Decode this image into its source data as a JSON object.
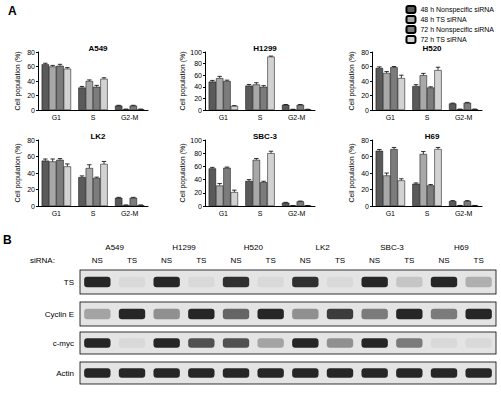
{
  "chart_data": [
    {
      "type": "bar",
      "title": "A549",
      "ylabel": "Cell population (%)",
      "categories": [
        "G1",
        "S",
        "G2-M"
      ],
      "series": [
        {
          "name": "48 h Nonspecific siRNA",
          "color": "#5a5a5a",
          "values": [
            63,
            31,
            6
          ],
          "errors": [
            1.5,
            1.5,
            0.5
          ]
        },
        {
          "name": "48 h TS siRNA",
          "color": "#a8a8a8",
          "values": [
            60,
            40,
            1
          ],
          "errors": [
            1.5,
            1.5,
            0.3
          ]
        },
        {
          "name": "72 h Nonspecific siRNA",
          "color": "#7c7c7c",
          "values": [
            61,
            32,
            6
          ],
          "errors": [
            2,
            2,
            0.5
          ]
        },
        {
          "name": "72 h TS siRNA",
          "color": "#d2d2d2",
          "values": [
            57,
            43,
            1
          ],
          "errors": [
            1.5,
            1.5,
            0.3
          ]
        }
      ],
      "ylim": [
        0,
        80
      ],
      "yticks": [
        0,
        20,
        40,
        60,
        80
      ],
      "grid": false
    },
    {
      "type": "bar",
      "title": "H1299",
      "ylabel": "Cell population (%)",
      "categories": [
        "G1",
        "S",
        "G2-M"
      ],
      "series": [
        {
          "name": "48 h Nonspecific siRNA",
          "color": "#5a5a5a",
          "values": [
            49,
            42,
            9
          ],
          "errors": [
            2,
            2,
            0.5
          ]
        },
        {
          "name": "48 h TS siRNA",
          "color": "#a8a8a8",
          "values": [
            55,
            44,
            1
          ],
          "errors": [
            3,
            3,
            0.3
          ]
        },
        {
          "name": "72 h Nonspecific siRNA",
          "color": "#7c7c7c",
          "values": [
            50,
            40,
            9
          ],
          "errors": [
            1.5,
            2,
            0.5
          ]
        },
        {
          "name": "72 h TS siRNA",
          "color": "#d2d2d2",
          "values": [
            7,
            92,
            1
          ],
          "errors": [
            0.5,
            1,
            0.3
          ]
        }
      ],
      "ylim": [
        0,
        100
      ],
      "yticks": [
        0,
        20,
        40,
        60,
        80,
        100
      ],
      "grid": false
    },
    {
      "type": "bar",
      "title": "H520",
      "ylabel": "Cell population (%)",
      "categories": [
        "G1",
        "S",
        "G2-M"
      ],
      "series": [
        {
          "name": "48 h Nonspecific siRNA",
          "color": "#5a5a5a",
          "values": [
            58,
            33,
            9
          ],
          "errors": [
            1.5,
            2,
            0.5
          ]
        },
        {
          "name": "48 h TS siRNA",
          "color": "#a8a8a8",
          "values": [
            51,
            48,
            1
          ],
          "errors": [
            2,
            2.5,
            0.3
          ]
        },
        {
          "name": "72 h Nonspecific siRNA",
          "color": "#7c7c7c",
          "values": [
            59,
            31,
            10
          ],
          "errors": [
            1,
            1,
            0.5
          ]
        },
        {
          "name": "72 h TS siRNA",
          "color": "#d2d2d2",
          "values": [
            44,
            55,
            1
          ],
          "errors": [
            4,
            4,
            0.3
          ]
        }
      ],
      "ylim": [
        0,
        80
      ],
      "yticks": [
        0,
        20,
        40,
        60,
        80
      ],
      "grid": false
    },
    {
      "type": "bar",
      "title": "LK2",
      "ylabel": "Cell population (%)",
      "categories": [
        "G1",
        "S",
        "G2-M"
      ],
      "series": [
        {
          "name": "48 h Nonspecific siRNA",
          "color": "#5a5a5a",
          "values": [
            55,
            35,
            10
          ],
          "errors": [
            2,
            1.5,
            0.5
          ]
        },
        {
          "name": "48 h TS siRNA",
          "color": "#a8a8a8",
          "values": [
            54,
            46,
            1
          ],
          "errors": [
            3,
            4,
            0.3
          ]
        },
        {
          "name": "72 h Nonspecific siRNA",
          "color": "#7c7c7c",
          "values": [
            56,
            34,
            10
          ],
          "errors": [
            1.5,
            1,
            0.5
          ]
        },
        {
          "name": "72 h TS siRNA",
          "color": "#d2d2d2",
          "values": [
            48,
            51,
            1
          ],
          "errors": [
            3,
            3,
            0.3
          ]
        }
      ],
      "ylim": [
        0,
        80
      ],
      "yticks": [
        0,
        20,
        40,
        60,
        80
      ],
      "grid": false
    },
    {
      "type": "bar",
      "title": "SBC-3",
      "ylabel": "Cell population (%)",
      "categories": [
        "G1",
        "S",
        "G2-M"
      ],
      "series": [
        {
          "name": "48 h Nonspecific siRNA",
          "color": "#5a5a5a",
          "values": [
            57,
            38,
            5
          ],
          "errors": [
            1.5,
            2,
            0.5
          ]
        },
        {
          "name": "48 h TS siRNA",
          "color": "#a8a8a8",
          "values": [
            31,
            70,
            0.5
          ],
          "errors": [
            3,
            2,
            0.2
          ]
        },
        {
          "name": "72 h Nonspecific siRNA",
          "color": "#7c7c7c",
          "values": [
            58,
            36,
            7
          ],
          "errors": [
            1,
            1.5,
            0.5
          ]
        },
        {
          "name": "72 h TS siRNA",
          "color": "#d2d2d2",
          "values": [
            21,
            80,
            0.5
          ],
          "errors": [
            3,
            3,
            0.2
          ]
        }
      ],
      "ylim": [
        0,
        100
      ],
      "yticks": [
        0,
        20,
        40,
        60,
        80,
        100
      ],
      "grid": false
    },
    {
      "type": "bar",
      "title": "H69",
      "ylabel": "Cell population (%)",
      "categories": [
        "G1",
        "S",
        "G2-M"
      ],
      "series": [
        {
          "name": "48 h Nonspecific siRNA",
          "color": "#5a5a5a",
          "values": [
            67,
            27,
            6
          ],
          "errors": [
            1.5,
            1,
            0.5
          ]
        },
        {
          "name": "48 h TS siRNA",
          "color": "#a8a8a8",
          "values": [
            37,
            63,
            0.5
          ],
          "errors": [
            3,
            3,
            0.2
          ]
        },
        {
          "name": "72 h Nonspecific siRNA",
          "color": "#7c7c7c",
          "values": [
            69,
            25,
            6
          ],
          "errors": [
            2,
            1,
            0.5
          ]
        },
        {
          "name": "72 h TS siRNA",
          "color": "#d2d2d2",
          "values": [
            31,
            69,
            0.5
          ],
          "errors": [
            2,
            2,
            0.2
          ]
        }
      ],
      "ylim": [
        0,
        80
      ],
      "yticks": [
        0,
        20,
        40,
        60,
        80
      ],
      "grid": false
    }
  ],
  "panel_a": {
    "label": "A"
  },
  "panel_b": {
    "label": "B",
    "row_header": "siRNA:",
    "cell_lines": [
      "A549",
      "H1299",
      "H520",
      "LK2",
      "SBC-3",
      "H69"
    ],
    "lane_labels": [
      "NS",
      "TS",
      "NS",
      "TS",
      "NS",
      "TS",
      "NS",
      "TS",
      "NS",
      "TS",
      "NS",
      "TS"
    ],
    "blots": [
      {
        "name": "TS",
        "band_intensity": [
          0.9,
          0.05,
          0.9,
          0.05,
          0.85,
          0.05,
          0.85,
          0.05,
          0.9,
          0.15,
          0.9,
          0.25
        ]
      },
      {
        "name": "Cyclin E",
        "band_intensity": [
          0.3,
          0.9,
          0.4,
          0.9,
          0.6,
          0.9,
          0.4,
          0.8,
          0.5,
          0.9,
          0.5,
          0.9
        ]
      },
      {
        "name": "c-myc",
        "band_intensity": [
          0.9,
          0.05,
          0.9,
          0.7,
          0.7,
          0.3,
          0.9,
          0.4,
          0.9,
          0.5,
          0.05,
          0.05
        ]
      },
      {
        "name": "Actin",
        "band_intensity": [
          0.9,
          0.9,
          0.9,
          0.9,
          0.9,
          0.9,
          0.9,
          0.9,
          0.9,
          0.9,
          0.9,
          0.9
        ]
      }
    ]
  }
}
